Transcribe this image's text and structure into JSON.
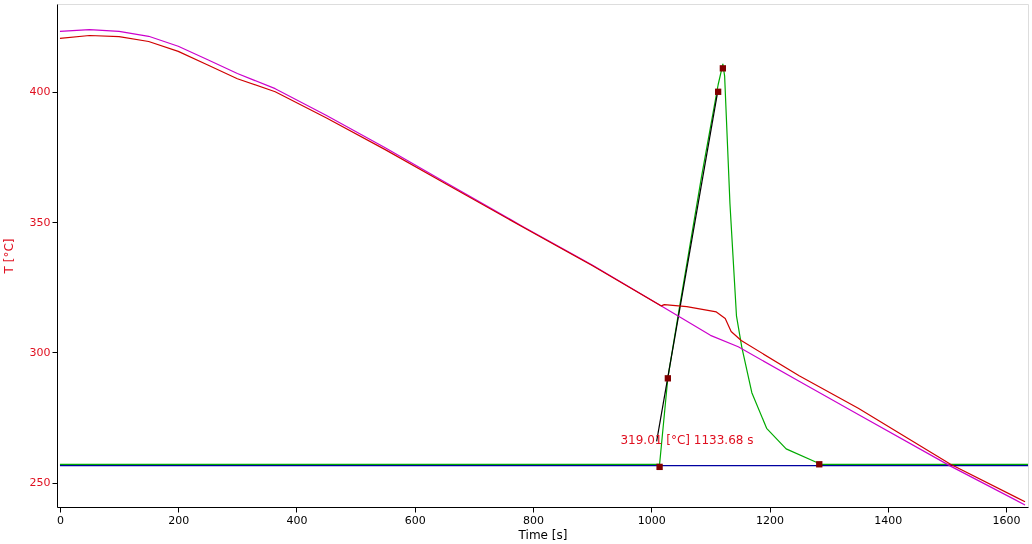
{
  "chart_data": {
    "type": "line",
    "xlabel": "Time [s]",
    "ylabel": "T  [°C]",
    "xlim": [
      -5,
      1637
    ],
    "ylim": [
      240.6,
      433.7
    ],
    "xticks": [
      0,
      200,
      400,
      600,
      800,
      {
        "value": 1000,
        "label": "1000"
      },
      {
        "value": 1200,
        "label": "1200"
      },
      {
        "value": 1400,
        "label": "1400"
      },
      {
        "value": 1600,
        "label": "1600"
      }
    ],
    "yticks": [
      250,
      300,
      350,
      400
    ],
    "grid": false,
    "line_style": "solid",
    "marker": "none",
    "annotations": [
      "319.01 [°C] 1133.68 s"
    ],
    "series": [
      {
        "color": "#0000a0",
        "x": [
          0,
          1637
        ],
        "values": [
          256.5,
          256.5
        ]
      },
      {
        "color": "#00aa00",
        "x": [
          0,
          1014,
          1028,
          1046,
          1085,
          1113,
          1121,
          1124,
          1133,
          1144,
          1153,
          1170,
          1195,
          1228,
          1279,
          1284,
          1637
        ],
        "values": [
          257,
          257,
          290.2,
          315,
          367.5,
          402.7,
          410.6,
          406,
          357,
          314,
          302,
          284.5,
          270.8,
          262.9,
          257.8,
          257,
          257
        ]
      },
      {
        "color": "#000000",
        "x": [
          1009,
          1113
        ],
        "values": [
          265.8,
          401
        ]
      },
      {
        "color": "#cc00cc",
        "x": [
          0,
          50,
          100,
          150,
          200,
          250,
          300,
          364,
          450,
          550,
          650,
          781,
          900,
          1017,
          1100,
          1147,
          1250,
          1350,
          1506,
          1632
        ],
        "values": [
          423.2,
          423.9,
          423.2,
          421.3,
          417.5,
          412.3,
          407,
          401.2,
          391,
          378.5,
          365.5,
          348.5,
          333.5,
          317.8,
          306.5,
          302.1,
          288.9,
          276.1,
          256.3,
          241.4
        ]
      },
      {
        "color": "#d00000",
        "x": [
          0,
          50,
          100,
          150,
          200,
          250,
          300,
          364,
          450,
          550,
          650,
          781,
          900,
          1017,
          1022,
          1060,
          1110,
          1125,
          1135,
          1152,
          1250,
          1350,
          1506,
          1632
        ],
        "values": [
          420.5,
          421.6,
          421.2,
          419.3,
          415.5,
          410.3,
          405,
          400,
          390,
          377.8,
          365,
          348.3,
          333.3,
          317.8,
          318.3,
          317.5,
          315.5,
          313,
          308,
          304.5,
          291,
          278.5,
          257,
          242.6
        ]
      },
      {
        "type": "scatter",
        "marker": "square",
        "color": "#800000",
        "x": [
          1014,
          1028,
          1113,
          1121,
          1284
        ],
        "values": [
          256,
          290,
          400,
          409,
          257
        ]
      }
    ]
  }
}
